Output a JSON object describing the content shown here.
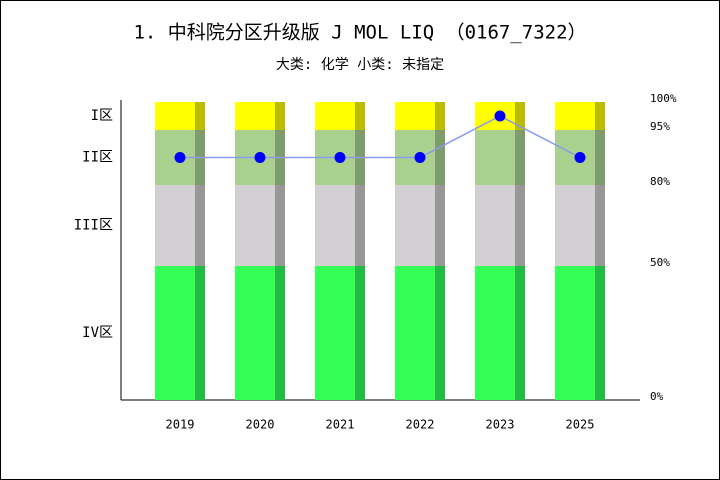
{
  "chart_data": {
    "type": "stacked-bar-line",
    "title": "1. 中科院分区升级版 J MOL LIQ （0167_7322）",
    "subtitle": "大类: 化学 小类: 未指定",
    "categories": [
      "2019",
      "2020",
      "2021",
      "2022",
      "2023",
      "2025"
    ],
    "series": [
      {
        "name": "IV区",
        "color": "#33ff55",
        "shade": "#22bb44",
        "values": [
          50,
          50,
          50,
          50,
          50,
          50
        ]
      },
      {
        "name": "III区",
        "color": "#d3d0d3",
        "shade": "#999799",
        "values": [
          30,
          30,
          30,
          30,
          30,
          30
        ]
      },
      {
        "name": "II区",
        "color": "#aad090",
        "shade": "#7f9c6c",
        "values": [
          15,
          15,
          15,
          15,
          15,
          15
        ]
      },
      {
        "name": "I区",
        "color": "#ffff00",
        "shade": "#bbbb00",
        "values": [
          5,
          5,
          5,
          5,
          5,
          5
        ]
      }
    ],
    "line": {
      "color": "#8899ee",
      "marker_color": "#0000ff",
      "values": [
        87.5,
        87.5,
        87.5,
        87.5,
        97.5,
        87.5
      ]
    },
    "ylim": [
      0,
      100
    ],
    "yticks": [
      {
        "value": 0,
        "label": "0%"
      },
      {
        "value": 50,
        "label": "50%"
      },
      {
        "value": 80,
        "label": "80%"
      },
      {
        "value": 95,
        "label": "95%"
      },
      {
        "value": 100,
        "label": "100%"
      }
    ]
  }
}
